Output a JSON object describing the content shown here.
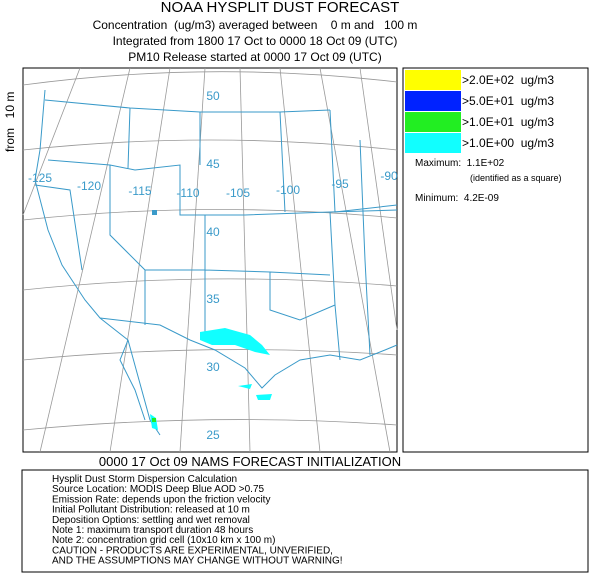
{
  "header": {
    "title": "NOAA HYSPLIT DUST FORECAST",
    "lines": [
      "Concentration  (ug/m3) averaged between    0 m and   100 m",
      "Integrated from 1800 17 Oct to 0000 18 Oct 09 (UTC)",
      "PM10 Release started at 0000 17 Oct 09 (UTC)"
    ]
  },
  "side_label": {
    "top": "10 m",
    "bottom": "from"
  },
  "map": {
    "latitude_labels": [
      "50",
      "45",
      "40",
      "35",
      "30",
      "25"
    ],
    "longitude_labels": [
      "-125",
      "-120",
      "-115",
      "-110",
      "-105",
      "-100",
      "-95",
      "-90"
    ]
  },
  "legend": {
    "entries": [
      {
        "label": ">2.0E+02  ug/m3",
        "color": "#ffff00"
      },
      {
        "label": ">5.0E+01  ug/m3",
        "color": "#0022ff"
      },
      {
        "label": ">1.0E+01  ug/m3",
        "color": "#22ee22"
      },
      {
        "label": ">1.0E+00  ug/m3",
        "color": "#11ffff"
      }
    ],
    "maximum": "Maximum:  1.1E+02",
    "maximum_note": "(identified as a square)",
    "minimum": "Minimum:  4.2E-09"
  },
  "footer_title": "0000 17 Oct 09 NAMS FORECAST INITIALIZATION",
  "notes": [
    "Hysplit Dust Storm Dispersion Calculation",
    "Source Location: MODIS Deep Blue AOD >0.75",
    "Emission Rate: depends upon the friction velocity",
    "Initial Pollutant Distribution: released at 10 m",
    "Deposition Options: settling and wet removal",
    "Note 1: maximum transport duration 48 hours",
    "Note 2: concentration grid cell (10x10 km x 100 m)",
    "CAUTION - PRODUCTS ARE EXPERIMENTAL, UNVERIFIED,",
    "AND THE ASSUMPTIONS MAY CHANGE WITHOUT WARNING!"
  ]
}
